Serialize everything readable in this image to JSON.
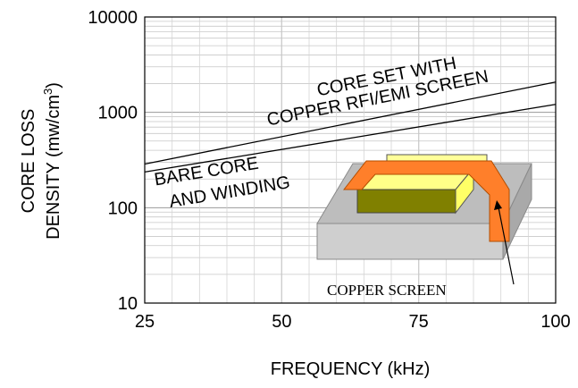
{
  "chart_data": {
    "type": "line",
    "xlabel": "FREQUENCY (kHz)",
    "ylabel": [
      "CORE LOSS",
      [
        "DENSITY (mw/cm",
        "3",
        ")"
      ]
    ],
    "x": [
      25,
      100
    ],
    "series": [
      {
        "label_lines": [
          "CORE SET WITH",
          "COPPER RFI/EMI SCREEN"
        ],
        "color": "#000000",
        "values": [
          287,
          2080
        ]
      },
      {
        "label_lines": [
          "BARE CORE",
          "AND WINDING"
        ],
        "color": "#000000",
        "values": [
          237,
          1213
        ]
      }
    ],
    "xlim": [
      25,
      100
    ],
    "xticks": [
      25,
      50,
      75,
      100
    ],
    "x_minor_step": 5,
    "ylim": [
      10,
      10000
    ],
    "yticks": [
      10,
      100,
      1000,
      10000
    ],
    "log_y": true,
    "grid": true,
    "inset_label": "COPPER SCREEN"
  }
}
